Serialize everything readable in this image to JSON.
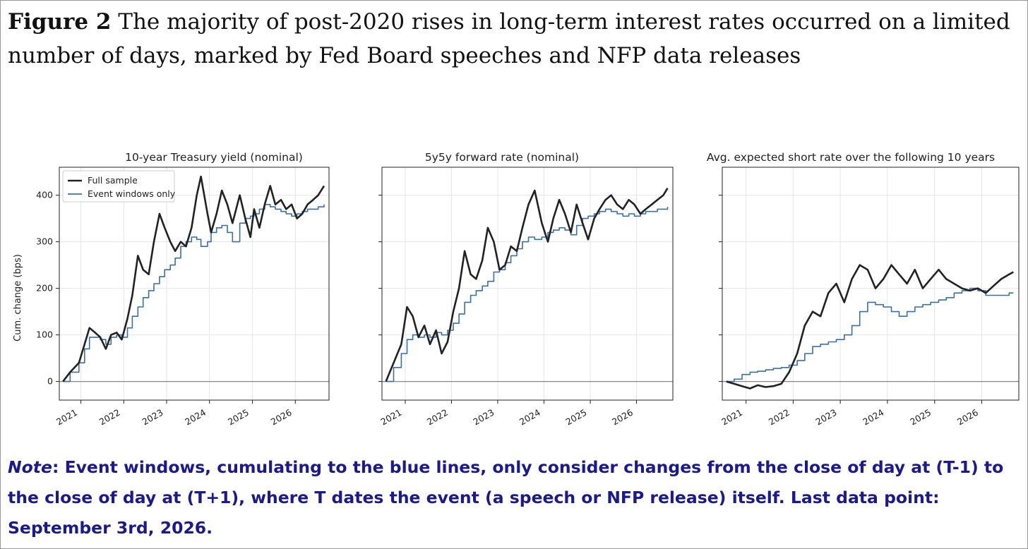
{
  "figure": {
    "label": "Figure 2",
    "title": "The majority of post-2020 rises in long-term interest rates occurred on a limited number of days, marked by Fed Board speeches and NFP data releases"
  },
  "note": {
    "label": "Note",
    "text": ": Event windows, cumulating to the blue lines, only consider changes from the close of day at (T-1) to the close of day at (T+1), where T dates the event (a speech or NFP release) itself. Last data point: September 3rd, 2026."
  },
  "colors": {
    "full": "#222222",
    "event": "#3a6fa8",
    "zero_line": "#888888",
    "grid": "#e6e6e6"
  },
  "chart_data": [
    {
      "type": "line",
      "title": "10-year Treasury yield (nominal)",
      "xlabel": "",
      "ylabel": "Cum. change (bps)",
      "x_ticks": [
        "2021",
        "2022",
        "2023",
        "2024",
        "2025",
        "2026"
      ],
      "y_ticks": [
        0,
        100,
        200,
        300,
        400
      ],
      "xlim": [
        "2020-07-01",
        "2026-10-15"
      ],
      "ylim": [
        -40,
        460
      ],
      "grid": true,
      "legend": {
        "position": "top-left",
        "entries": [
          "Full sample",
          "Event windows only"
        ]
      },
      "series": [
        {
          "name": "Full sample",
          "x": [
            "2020-08-01",
            "2020-10-01",
            "2020-12-15",
            "2021-02-01",
            "2021-03-15",
            "2021-05-01",
            "2021-06-15",
            "2021-08-01",
            "2021-09-15",
            "2021-11-01",
            "2021-12-15",
            "2022-02-01",
            "2022-03-15",
            "2022-05-01",
            "2022-06-15",
            "2022-08-01",
            "2022-09-15",
            "2022-11-01",
            "2022-12-15",
            "2023-02-01",
            "2023-03-15",
            "2023-05-01",
            "2023-06-15",
            "2023-08-01",
            "2023-09-15",
            "2023-10-20",
            "2023-12-15",
            "2024-01-15",
            "2024-03-01",
            "2024-04-15",
            "2024-06-01",
            "2024-07-15",
            "2024-09-15",
            "2024-11-01",
            "2024-12-15",
            "2025-01-15",
            "2025-03-01",
            "2025-04-15",
            "2025-06-01",
            "2025-07-15",
            "2025-09-01",
            "2025-10-15",
            "2025-12-01",
            "2026-01-15",
            "2026-03-01",
            "2026-04-15",
            "2026-06-01",
            "2026-07-15",
            "2026-09-03"
          ],
          "y": [
            0,
            20,
            40,
            80,
            115,
            105,
            95,
            70,
            100,
            105,
            90,
            135,
            185,
            270,
            240,
            230,
            300,
            360,
            330,
            300,
            280,
            300,
            290,
            330,
            400,
            440,
            360,
            320,
            360,
            410,
            380,
            340,
            400,
            350,
            310,
            370,
            330,
            380,
            420,
            380,
            390,
            370,
            380,
            350,
            360,
            380,
            390,
            400,
            420
          ]
        },
        {
          "name": "Event windows only",
          "x": [
            "2020-08-01",
            "2020-10-01",
            "2020-12-15",
            "2021-02-01",
            "2021-03-15",
            "2021-05-01",
            "2021-06-15",
            "2021-08-01",
            "2021-09-15",
            "2021-11-01",
            "2021-12-15",
            "2022-02-01",
            "2022-03-15",
            "2022-05-01",
            "2022-06-15",
            "2022-08-01",
            "2022-09-15",
            "2022-11-01",
            "2022-12-15",
            "2023-02-01",
            "2023-03-15",
            "2023-05-01",
            "2023-06-15",
            "2023-08-01",
            "2023-09-15",
            "2023-10-20",
            "2023-12-15",
            "2024-01-15",
            "2024-03-01",
            "2024-04-15",
            "2024-06-01",
            "2024-07-15",
            "2024-09-15",
            "2024-11-01",
            "2024-12-15",
            "2025-01-15",
            "2025-03-01",
            "2025-04-15",
            "2025-06-01",
            "2025-07-15",
            "2025-09-01",
            "2025-10-15",
            "2025-12-01",
            "2026-01-15",
            "2026-03-01",
            "2026-04-15",
            "2026-06-01",
            "2026-07-15",
            "2026-09-03"
          ],
          "y": [
            0,
            20,
            40,
            70,
            95,
            95,
            90,
            80,
            95,
            100,
            95,
            115,
            140,
            160,
            180,
            195,
            210,
            225,
            240,
            250,
            265,
            290,
            300,
            310,
            305,
            290,
            300,
            320,
            330,
            335,
            320,
            300,
            340,
            350,
            355,
            360,
            370,
            380,
            375,
            370,
            365,
            360,
            355,
            360,
            365,
            370,
            370,
            375,
            380
          ]
        }
      ]
    },
    {
      "type": "line",
      "title": "5y5y forward rate (nominal)",
      "xlabel": "",
      "ylabel": "",
      "x_ticks": [
        "2021",
        "2022",
        "2023",
        "2024",
        "2025",
        "2026"
      ],
      "y_ticks": [
        0,
        100,
        200,
        300,
        400
      ],
      "xlim": [
        "2020-07-01",
        "2026-10-15"
      ],
      "ylim": [
        -40,
        460
      ],
      "grid": true,
      "series": [
        {
          "name": "Full sample",
          "x": [
            "2020-08-01",
            "2020-10-01",
            "2020-12-01",
            "2021-01-15",
            "2021-03-01",
            "2021-04-15",
            "2021-06-01",
            "2021-07-15",
            "2021-09-01",
            "2021-10-15",
            "2021-12-01",
            "2022-01-15",
            "2022-03-01",
            "2022-04-15",
            "2022-06-01",
            "2022-07-15",
            "2022-09-01",
            "2022-10-15",
            "2022-12-01",
            "2023-01-15",
            "2023-03-01",
            "2023-04-15",
            "2023-06-01",
            "2023-07-15",
            "2023-09-01",
            "2023-10-20",
            "2023-12-15",
            "2024-02-01",
            "2024-03-15",
            "2024-05-01",
            "2024-06-15",
            "2024-08-01",
            "2024-09-15",
            "2024-11-01",
            "2024-12-15",
            "2025-02-01",
            "2025-03-15",
            "2025-05-01",
            "2025-06-15",
            "2025-08-01",
            "2025-09-15",
            "2025-11-01",
            "2025-12-15",
            "2026-02-01",
            "2026-03-15",
            "2026-05-01",
            "2026-06-15",
            "2026-08-01",
            "2026-09-03"
          ],
          "y": [
            0,
            40,
            80,
            160,
            140,
            95,
            120,
            80,
            110,
            60,
            85,
            150,
            200,
            280,
            230,
            220,
            260,
            330,
            300,
            240,
            250,
            290,
            280,
            330,
            380,
            410,
            340,
            300,
            350,
            390,
            360,
            320,
            380,
            340,
            305,
            350,
            370,
            390,
            400,
            380,
            370,
            390,
            380,
            360,
            370,
            380,
            390,
            400,
            415
          ]
        },
        {
          "name": "Event windows only",
          "x": [
            "2020-08-01",
            "2020-10-01",
            "2020-12-01",
            "2021-01-15",
            "2021-03-01",
            "2021-04-15",
            "2021-06-01",
            "2021-07-15",
            "2021-09-01",
            "2021-10-15",
            "2021-12-01",
            "2022-01-15",
            "2022-03-01",
            "2022-04-15",
            "2022-06-01",
            "2022-07-15",
            "2022-09-01",
            "2022-10-15",
            "2022-12-01",
            "2023-01-15",
            "2023-03-01",
            "2023-04-15",
            "2023-06-01",
            "2023-07-15",
            "2023-09-01",
            "2023-10-20",
            "2023-12-15",
            "2024-02-01",
            "2024-03-15",
            "2024-05-01",
            "2024-06-15",
            "2024-08-01",
            "2024-09-15",
            "2024-11-01",
            "2024-12-15",
            "2025-02-01",
            "2025-03-15",
            "2025-05-01",
            "2025-06-15",
            "2025-08-01",
            "2025-09-15",
            "2025-11-01",
            "2025-12-15",
            "2026-02-01",
            "2026-03-15",
            "2026-05-01",
            "2026-06-15",
            "2026-08-01",
            "2026-09-03"
          ],
          "y": [
            0,
            30,
            60,
            90,
            100,
            95,
            100,
            95,
            105,
            100,
            110,
            125,
            145,
            170,
            185,
            195,
            205,
            215,
            235,
            240,
            255,
            270,
            285,
            300,
            310,
            305,
            310,
            320,
            325,
            330,
            325,
            315,
            335,
            350,
            355,
            360,
            365,
            370,
            365,
            360,
            355,
            360,
            355,
            360,
            365,
            365,
            370,
            370,
            375
          ]
        }
      ]
    },
    {
      "type": "line",
      "title": "Avg. expected short rate over the following 10 years",
      "xlabel": "",
      "ylabel": "",
      "x_ticks": [
        "2021",
        "2022",
        "2023",
        "2024",
        "2025",
        "2026"
      ],
      "y_ticks": [
        0,
        100,
        200,
        300,
        400
      ],
      "xlim": [
        "2020-07-01",
        "2026-10-15"
      ],
      "ylim": [
        -40,
        460
      ],
      "grid": true,
      "series": [
        {
          "name": "Full sample",
          "x": [
            "2020-08-01",
            "2020-10-01",
            "2020-12-01",
            "2021-02-01",
            "2021-04-01",
            "2021-06-01",
            "2021-08-01",
            "2021-10-01",
            "2021-12-01",
            "2022-02-01",
            "2022-04-01",
            "2022-06-01",
            "2022-08-01",
            "2022-10-01",
            "2022-12-01",
            "2023-02-01",
            "2023-04-01",
            "2023-06-01",
            "2023-08-01",
            "2023-10-01",
            "2023-12-01",
            "2024-02-01",
            "2024-04-01",
            "2024-06-01",
            "2024-08-01",
            "2024-10-01",
            "2024-12-01",
            "2025-02-01",
            "2025-04-01",
            "2025-06-01",
            "2025-08-01",
            "2025-10-01",
            "2025-12-01",
            "2026-02-01",
            "2026-04-01",
            "2026-06-01",
            "2026-08-01",
            "2026-09-03"
          ],
          "y": [
            0,
            -5,
            -10,
            -15,
            -8,
            -12,
            -10,
            -5,
            20,
            60,
            120,
            150,
            140,
            190,
            210,
            170,
            220,
            250,
            240,
            200,
            220,
            250,
            230,
            210,
            240,
            200,
            220,
            240,
            220,
            210,
            200,
            195,
            200,
            190,
            205,
            220,
            230,
            235
          ]
        },
        {
          "name": "Event windows only",
          "x": [
            "2020-08-01",
            "2020-10-01",
            "2020-12-01",
            "2021-02-01",
            "2021-04-01",
            "2021-06-01",
            "2021-08-01",
            "2021-10-01",
            "2021-12-01",
            "2022-02-01",
            "2022-04-01",
            "2022-06-01",
            "2022-08-01",
            "2022-10-01",
            "2022-12-01",
            "2023-02-01",
            "2023-04-01",
            "2023-06-01",
            "2023-08-01",
            "2023-10-01",
            "2023-12-01",
            "2024-02-01",
            "2024-04-01",
            "2024-06-01",
            "2024-08-01",
            "2024-10-01",
            "2024-12-01",
            "2025-02-01",
            "2025-04-01",
            "2025-06-01",
            "2025-08-01",
            "2025-10-01",
            "2025-12-01",
            "2026-02-01",
            "2026-04-01",
            "2026-06-01",
            "2026-08-01",
            "2026-09-03"
          ],
          "y": [
            0,
            5,
            15,
            20,
            22,
            25,
            28,
            30,
            35,
            45,
            60,
            75,
            80,
            85,
            90,
            100,
            120,
            150,
            170,
            165,
            160,
            150,
            140,
            150,
            160,
            165,
            170,
            175,
            180,
            190,
            195,
            200,
            195,
            185,
            185,
            185,
            190,
            190
          ]
        }
      ]
    }
  ]
}
